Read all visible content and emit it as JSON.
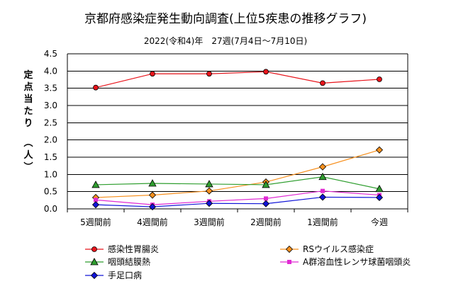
{
  "chart_data": {
    "type": "line",
    "title": "京都府感染症発生動向調査(上位5疾患の推移グラフ)",
    "subtitle": "2022(令和4)年　27週(7月4日～7月10日)",
    "ylabel": "定点当たり（人）",
    "xlabel": "",
    "categories": [
      "5週間前",
      "4週間前",
      "3週間前",
      "2週間前",
      "1週間前",
      "今週"
    ],
    "ylim": [
      0,
      4.5
    ],
    "yticks": [
      "0.0",
      "0.5",
      "1.0",
      "1.5",
      "2.0",
      "2.5",
      "3.0",
      "3.5",
      "4.0",
      "4.5"
    ],
    "grid": true,
    "legend_position": "bottom",
    "series": [
      {
        "name": "感染性胃腸炎",
        "color": "#e8141b",
        "marker": "circle",
        "values": [
          3.52,
          3.92,
          3.92,
          3.98,
          3.65,
          3.76
        ]
      },
      {
        "name": "RSウイルス感染症",
        "color": "#f7901e",
        "marker": "diamond",
        "values": [
          0.33,
          0.4,
          0.52,
          0.78,
          1.22,
          1.71
        ]
      },
      {
        "name": "咽頭結膜熱",
        "color": "#2f9e2f",
        "marker": "triangle",
        "values": [
          0.7,
          0.74,
          0.72,
          0.7,
          0.93,
          0.58
        ]
      },
      {
        "name": "A群溶血性レンサ球菌咽頭炎",
        "color": "#e02ad3",
        "marker": "square",
        "values": [
          0.26,
          0.12,
          0.22,
          0.3,
          0.52,
          0.4
        ]
      },
      {
        "name": "手足口病",
        "color": "#1014d8",
        "marker": "diamond",
        "values": [
          0.12,
          0.06,
          0.16,
          0.15,
          0.34,
          0.33
        ]
      }
    ]
  }
}
